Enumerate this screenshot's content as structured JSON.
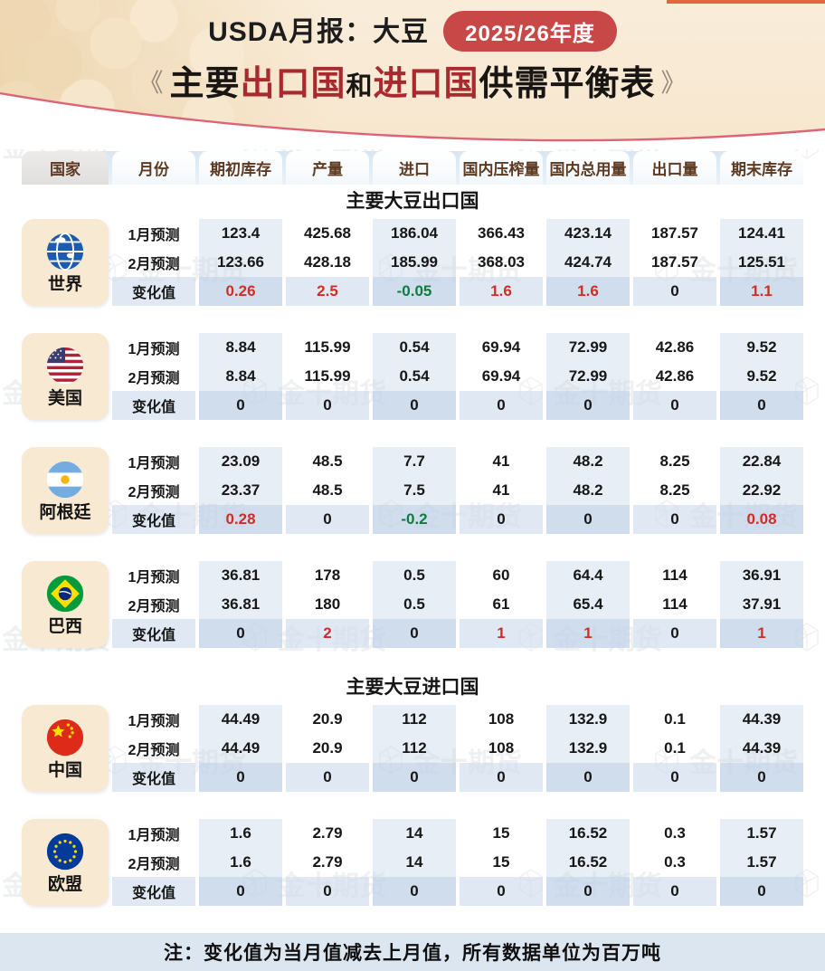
{
  "header": {
    "title": "USDA月报：大豆",
    "season_badge": "2025/26年度",
    "subtitle": {
      "open_quote": "《",
      "close_quote": "》",
      "parts": [
        {
          "text": "主要",
          "tone": "dark"
        },
        {
          "text": "出口国",
          "tone": "red"
        },
        {
          "text": "和",
          "tone": "dark-small"
        },
        {
          "text": "进口国",
          "tone": "red"
        },
        {
          "text": "供需平衡表",
          "tone": "dark"
        }
      ]
    }
  },
  "watermark": {
    "brand": "金十期货",
    "icon": "gem-icon"
  },
  "colors": {
    "accent_pill_red": "#c84848",
    "headline_red": "#a9292e",
    "positive_change_red": "#ce2e28",
    "negative_change_green": "#0e7c3f",
    "header_tab_text_brown": "#5d3a22",
    "country_tile_beige": "#f8e9d2",
    "note_band_blue": "#dce6f0",
    "top_strip_orange": "#e06742"
  },
  "table": {
    "columns": [
      "国家",
      "月份",
      "期初库存",
      "产量",
      "进口",
      "国内压榨量",
      "国内总用量",
      "出口量",
      "期末库存"
    ],
    "row_labels": [
      "1月预测",
      "2月预测",
      "变化值"
    ],
    "sections": [
      {
        "title": "主要大豆出口国",
        "countries": [
          {
            "name": "世界",
            "flag": "world",
            "rows": [
              [
                "123.4",
                "425.68",
                "186.04",
                "366.43",
                "423.14",
                "187.57",
                "124.41"
              ],
              [
                "123.66",
                "428.18",
                "185.99",
                "368.03",
                "424.74",
                "187.57",
                "125.51"
              ],
              [
                "0.26",
                "2.5",
                "-0.05",
                "1.6",
                "1.6",
                "0",
                "1.1"
              ]
            ]
          },
          {
            "name": "美国",
            "flag": "us",
            "rows": [
              [
                "8.84",
                "115.99",
                "0.54",
                "69.94",
                "72.99",
                "42.86",
                "9.52"
              ],
              [
                "8.84",
                "115.99",
                "0.54",
                "69.94",
                "72.99",
                "42.86",
                "9.52"
              ],
              [
                "0",
                "0",
                "0",
                "0",
                "0",
                "0",
                "0"
              ]
            ]
          },
          {
            "name": "阿根廷",
            "flag": "ar",
            "rows": [
              [
                "23.09",
                "48.5",
                "7.7",
                "41",
                "48.2",
                "8.25",
                "22.84"
              ],
              [
                "23.37",
                "48.5",
                "7.5",
                "41",
                "48.2",
                "8.25",
                "22.92"
              ],
              [
                "0.28",
                "0",
                "-0.2",
                "0",
                "0",
                "0",
                "0.08"
              ]
            ]
          },
          {
            "name": "巴西",
            "flag": "br",
            "rows": [
              [
                "36.81",
                "178",
                "0.5",
                "60",
                "64.4",
                "114",
                "36.91"
              ],
              [
                "36.81",
                "180",
                "0.5",
                "61",
                "65.4",
                "114",
                "37.91"
              ],
              [
                "0",
                "2",
                "0",
                "1",
                "1",
                "0",
                "1"
              ]
            ]
          }
        ]
      },
      {
        "title": "主要大豆进口国",
        "countries": [
          {
            "name": "中国",
            "flag": "cn",
            "rows": [
              [
                "44.49",
                "20.9",
                "112",
                "108",
                "132.9",
                "0.1",
                "44.39"
              ],
              [
                "44.49",
                "20.9",
                "112",
                "108",
                "132.9",
                "0.1",
                "44.39"
              ],
              [
                "0",
                "0",
                "0",
                "0",
                "0",
                "0",
                "0"
              ]
            ]
          },
          {
            "name": "欧盟",
            "flag": "eu",
            "rows": [
              [
                "1.6",
                "2.79",
                "14",
                "15",
                "16.52",
                "0.3",
                "1.57"
              ],
              [
                "1.6",
                "2.79",
                "14",
                "15",
                "16.52",
                "0.3",
                "1.57"
              ],
              [
                "0",
                "0",
                "0",
                "0",
                "0",
                "0",
                "0"
              ]
            ]
          }
        ]
      }
    ],
    "note": "注：变化值为当月值减去上月值，所有数据单位为百万吨"
  }
}
